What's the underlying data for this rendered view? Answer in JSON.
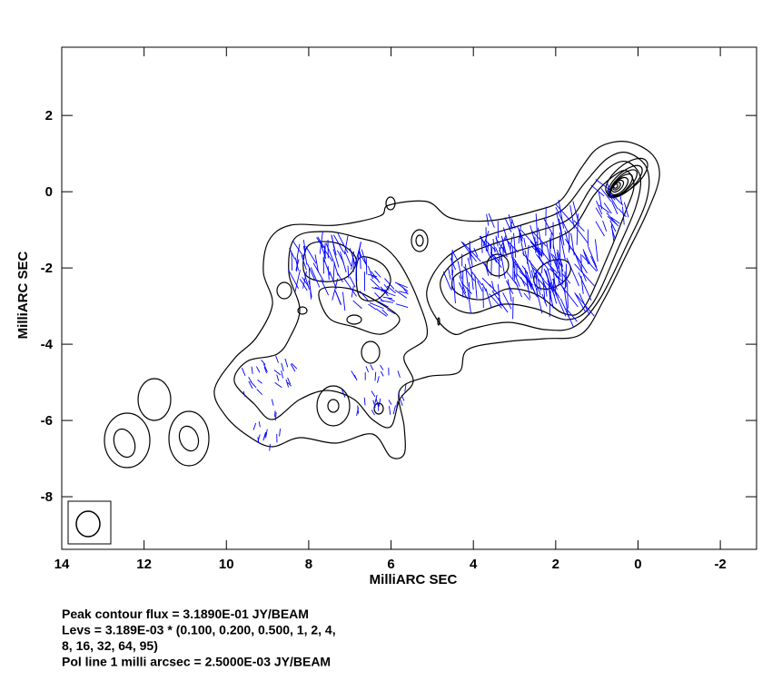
{
  "chart_data": {
    "type": "contour",
    "xlabel": "MilliARC SEC",
    "ylabel": "MilliARC SEC",
    "xlim": [
      14,
      -2.88
    ],
    "ylim": [
      -9.38,
      3.79
    ],
    "xticks": [
      14,
      12,
      10,
      8,
      6,
      4,
      2,
      0,
      -2
    ],
    "yticks": [
      2,
      0,
      -2,
      -4,
      -6,
      -8
    ],
    "contour_color": "#000000",
    "vector_color": "#0000ff",
    "footer": [
      "Peak contour flux =  3.1890E-01 JY/BEAM",
      "Levs = 3.189E-03 * (0.100, 0.200, 0.500, 1, 2, 4,",
      "8, 16, 32, 64, 95)",
      "Pol line 1 milli arcsec =  2.5000E-03 JY/BEAM"
    ]
  }
}
